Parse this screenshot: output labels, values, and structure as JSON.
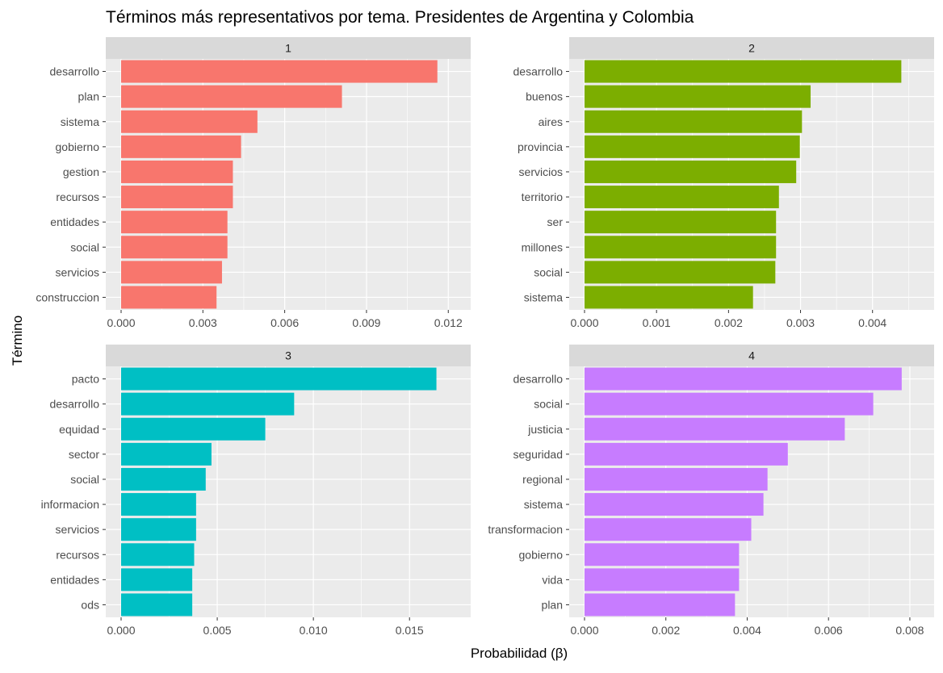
{
  "title": "Términos más representativos por tema. Presidentes de Argentina y Colombia",
  "xlabel": "Probabilidad (β)",
  "ylabel": "Término",
  "chart_data": {
    "type": "bar",
    "orientation": "horizontal",
    "grid": true,
    "legend": "none",
    "panels": [
      {
        "label": "1",
        "color": "#F8766D",
        "xlim": [
          0,
          0.0122
        ],
        "ticks": [
          0,
          0.003,
          0.006,
          0.009,
          0.012
        ],
        "tick_labels": [
          "0.000",
          "0.003",
          "0.006",
          "0.009",
          "0.012"
        ],
        "categories": [
          "desarrollo",
          "plan",
          "sistema",
          "gobierno",
          "gestion",
          "recursos",
          "entidades",
          "social",
          "servicios",
          "construccion"
        ],
        "values": [
          0.0116,
          0.0081,
          0.005,
          0.0044,
          0.0041,
          0.0041,
          0.0039,
          0.0039,
          0.0037,
          0.0035
        ]
      },
      {
        "label": "2",
        "color": "#7CAE00",
        "xlim": [
          0,
          0.00462
        ],
        "ticks": [
          0,
          0.001,
          0.002,
          0.003,
          0.004
        ],
        "tick_labels": [
          "0.000",
          "0.001",
          "0.002",
          "0.003",
          "0.004"
        ],
        "categories": [
          "desarrollo",
          "buenos",
          "aires",
          "provincia",
          "servicios",
          "territorio",
          "ser",
          "millones",
          "social",
          "sistema"
        ],
        "values": [
          0.0044,
          0.00314,
          0.00302,
          0.00299,
          0.00294,
          0.0027,
          0.00266,
          0.00266,
          0.00265,
          0.00234
        ]
      },
      {
        "label": "3",
        "color": "#00BFC4",
        "xlim": [
          0,
          0.0173
        ],
        "ticks": [
          0,
          0.005,
          0.01,
          0.015
        ],
        "tick_labels": [
          "0.000",
          "0.005",
          "0.010",
          "0.015"
        ],
        "categories": [
          "pacto",
          "desarrollo",
          "equidad",
          "sector",
          "social",
          "informacion",
          "servicios",
          "recursos",
          "entidades",
          "ods"
        ],
        "values": [
          0.0164,
          0.009,
          0.0075,
          0.0047,
          0.0044,
          0.0039,
          0.0039,
          0.0038,
          0.0037,
          0.0037
        ]
      },
      {
        "label": "4",
        "color": "#C77CFF",
        "xlim": [
          0,
          0.00818
        ],
        "ticks": [
          0,
          0.002,
          0.004,
          0.006,
          0.008
        ],
        "tick_labels": [
          "0.000",
          "0.002",
          "0.004",
          "0.006",
          "0.008"
        ],
        "categories": [
          "desarrollo",
          "social",
          "justicia",
          "seguridad",
          "regional",
          "sistema",
          "transformacion",
          "gobierno",
          "vida",
          "plan"
        ],
        "values": [
          0.0078,
          0.0071,
          0.0064,
          0.005,
          0.0045,
          0.0044,
          0.0041,
          0.0038,
          0.0038,
          0.0037
        ]
      }
    ]
  }
}
